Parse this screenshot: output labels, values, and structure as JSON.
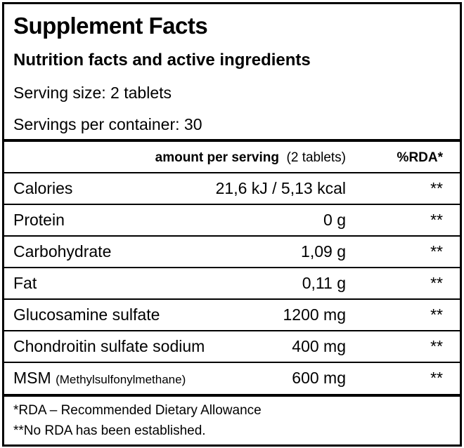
{
  "title": "Supplement Facts",
  "subtitle": "Nutrition facts and active ingredients",
  "serving_size": "Serving size: 2 tablets",
  "servings_per_container": "Servings per container: 30",
  "table": {
    "header": {
      "amount": "amount per serving",
      "amount_note": "(2 tablets)",
      "rda": "%RDA*"
    },
    "rows": [
      {
        "name": "Calories",
        "amount": "21,6 kJ / 5,13 kcal",
        "rda": "**"
      },
      {
        "name": "Protein",
        "amount": "0 g",
        "rda": "**"
      },
      {
        "name": "Carbohydrate",
        "amount": "1,09 g",
        "rda": "**"
      },
      {
        "name": "Fat",
        "amount": "0,11 g",
        "rda": "**"
      },
      {
        "name": "Glucosamine sulfate",
        "amount": "1200 mg",
        "rda": "**"
      },
      {
        "name": "Chondroitin sulfate sodium",
        "amount": "400 mg",
        "rda": "**"
      },
      {
        "name": "MSM",
        "name_note": "(Methylsulfonylmethane)",
        "amount": "600 mg",
        "rda": "**"
      }
    ]
  },
  "footnotes": [
    "*RDA – Recommended Dietary Allowance",
    "**No RDA has been established."
  ]
}
